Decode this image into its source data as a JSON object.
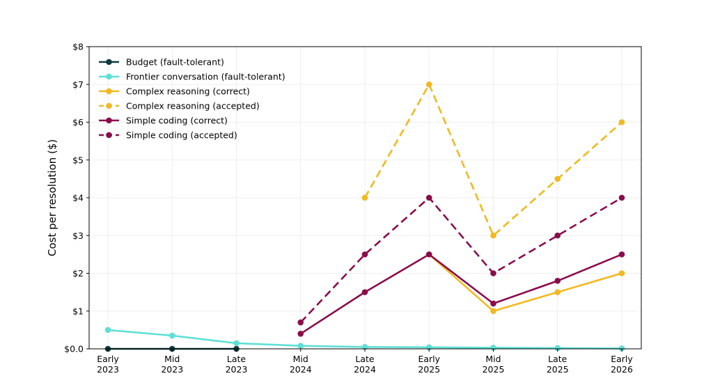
{
  "chart_data": {
    "type": "line",
    "title": "",
    "xlabel": "",
    "ylabel": "Cost per resolution ($)",
    "categories": [
      [
        "Early",
        "2023"
      ],
      [
        "Mid",
        "2023"
      ],
      [
        "Late",
        "2023"
      ],
      [
        "Mid",
        "2024"
      ],
      [
        "Late",
        "2024"
      ],
      [
        "Early",
        "2025"
      ],
      [
        "Mid",
        "2025"
      ],
      [
        "Late",
        "2025"
      ],
      [
        "Early",
        "2026"
      ]
    ],
    "ylim": [
      0,
      8
    ],
    "yticks": [
      0,
      1,
      2,
      3,
      4,
      5,
      6,
      7,
      8
    ],
    "ytick_labels": [
      "$0.0",
      "$1",
      "$2",
      "$3",
      "$4",
      "$5",
      "$6",
      "$7",
      "$8"
    ],
    "grid": true,
    "legend_position": "top-left",
    "series": [
      {
        "name": "Budget (fault-tolerant)",
        "color": "#0e3b3f",
        "dashed": false,
        "values": [
          0.0,
          0.0,
          0.0,
          null,
          null,
          null,
          null,
          null,
          null
        ]
      },
      {
        "name": "Frontier conversation (fault-tolerant)",
        "color": "#5ee0d6",
        "dashed": false,
        "values": [
          0.5,
          0.35,
          0.15,
          0.08,
          0.05,
          0.04,
          0.03,
          0.02,
          0.01
        ]
      },
      {
        "name": "Complex reasoning (correct)",
        "color": "#f2b91f",
        "dashed": false,
        "values": [
          null,
          null,
          null,
          null,
          null,
          2.5,
          1.0,
          1.5,
          2.0
        ]
      },
      {
        "name": "Complex reasoning (accepted)",
        "color": "#f2b91f",
        "dashed": true,
        "values": [
          null,
          null,
          null,
          null,
          4.0,
          7.0,
          3.0,
          4.5,
          6.0
        ]
      },
      {
        "name": "Simple coding (correct)",
        "color": "#8c0c4b",
        "dashed": false,
        "values": [
          null,
          null,
          null,
          0.4,
          1.5,
          2.5,
          1.2,
          1.8,
          2.5
        ]
      },
      {
        "name": "Simple coding (accepted)",
        "color": "#8c0c4b",
        "dashed": true,
        "values": [
          null,
          null,
          null,
          0.7,
          2.5,
          4.0,
          2.0,
          3.0,
          4.0
        ]
      }
    ]
  }
}
